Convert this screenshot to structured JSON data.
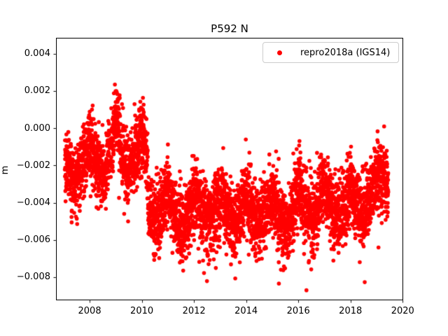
{
  "figure": {
    "title": "P592 N",
    "ylabel": "m",
    "background_color": "#ffffff",
    "spine_color": "#000000",
    "tick_color": "#000000"
  },
  "legend": {
    "label": "repro2018a (IGS14)",
    "marker_color": "#ff0000",
    "border_color": "#cccccc",
    "position": "upper right"
  },
  "chart_data": {
    "type": "scatter",
    "title": "P592 N",
    "xlabel": "",
    "ylabel": "m",
    "grid": false,
    "legend_position": "upper right",
    "xlim": [
      2006.71,
      2020.02
    ],
    "ylim": [
      -0.00924,
      0.00485
    ],
    "x_ticks": {
      "values": [
        2008,
        2010,
        2012,
        2014,
        2016,
        2018,
        2020
      ],
      "labels": [
        "2008",
        "2010",
        "2012",
        "2014",
        "2016",
        "2018",
        "2020"
      ]
    },
    "y_ticks": {
      "values": [
        0.004,
        0.002,
        0.0,
        -0.002,
        -0.004,
        -0.006,
        -0.008
      ],
      "labels": [
        "0.004",
        "0.002",
        "0.000",
        "−0.002",
        "−0.004",
        "−0.006",
        "−0.008"
      ]
    },
    "series": [
      {
        "name": "repro2018a (IGS14)",
        "color": "#ff0000",
        "marker": "circle",
        "marker_diameter_px": 6,
        "sampling": {
          "x_start": 2007.05,
          "x_end": 2019.45,
          "points_per_year": 365,
          "seed": 20180421
        },
        "noise_sigma": 0.00095,
        "noise_clip_sigma": 3.2,
        "outliers": {
          "rate": 0.008,
          "min_offset": -0.0034,
          "max_offset": -0.0012
        },
        "value_clamp": [
          -0.0087,
          0.0043
        ],
        "mean_control_points": [
          [
            2007.05,
            -0.0018
          ],
          [
            2007.2,
            -0.0022
          ],
          [
            2007.4,
            -0.0027
          ],
          [
            2007.6,
            -0.0024
          ],
          [
            2007.8,
            -0.0014
          ],
          [
            2008.0,
            -0.0006
          ],
          [
            2008.1,
            -0.001
          ],
          [
            2008.3,
            -0.0022
          ],
          [
            2008.55,
            -0.0027
          ],
          [
            2008.75,
            -0.0016
          ],
          [
            2008.95,
            0.0001
          ],
          [
            2009.05,
            0.0004
          ],
          [
            2009.2,
            -0.0012
          ],
          [
            2009.45,
            -0.0024
          ],
          [
            2009.6,
            -0.002
          ],
          [
            2009.8,
            -0.0011
          ],
          [
            2009.95,
            -0.0004
          ],
          [
            2010.05,
            -0.0006
          ],
          [
            2010.2,
            -0.0018
          ],
          [
            2010.28,
            -0.0042
          ],
          [
            2010.5,
            -0.005
          ],
          [
            2010.7,
            -0.0047
          ],
          [
            2010.9,
            -0.0038
          ],
          [
            2011.0,
            -0.0033
          ],
          [
            2011.15,
            -0.004
          ],
          [
            2011.4,
            -0.0052
          ],
          [
            2011.6,
            -0.0055
          ],
          [
            2011.8,
            -0.0046
          ],
          [
            2012.0,
            -0.0034
          ],
          [
            2012.2,
            -0.0042
          ],
          [
            2012.45,
            -0.005
          ],
          [
            2012.7,
            -0.0046
          ],
          [
            2012.9,
            -0.0038
          ],
          [
            2013.05,
            -0.0036
          ],
          [
            2013.3,
            -0.0046
          ],
          [
            2013.55,
            -0.0052
          ],
          [
            2013.8,
            -0.0044
          ],
          [
            2014.0,
            -0.0036
          ],
          [
            2014.2,
            -0.0044
          ],
          [
            2014.5,
            -0.0051
          ],
          [
            2014.75,
            -0.0046
          ],
          [
            2015.0,
            -0.0037
          ],
          [
            2015.25,
            -0.0047
          ],
          [
            2015.5,
            -0.0054
          ],
          [
            2015.75,
            -0.0047
          ],
          [
            2015.95,
            -0.0031
          ],
          [
            2016.05,
            -0.0029
          ],
          [
            2016.3,
            -0.0043
          ],
          [
            2016.55,
            -0.0049
          ],
          [
            2016.8,
            -0.0041
          ],
          [
            2016.97,
            -0.0028
          ],
          [
            2017.1,
            -0.0033
          ],
          [
            2017.35,
            -0.0044
          ],
          [
            2017.6,
            -0.0047
          ],
          [
            2017.8,
            -0.004
          ],
          [
            2018.0,
            -0.0031
          ],
          [
            2018.2,
            -0.004
          ],
          [
            2018.45,
            -0.0047
          ],
          [
            2018.7,
            -0.004
          ],
          [
            2018.9,
            -0.003
          ],
          [
            2019.05,
            -0.0022
          ],
          [
            2019.2,
            -0.0026
          ],
          [
            2019.35,
            -0.0029
          ],
          [
            2019.45,
            -0.0031
          ]
        ]
      }
    ]
  }
}
